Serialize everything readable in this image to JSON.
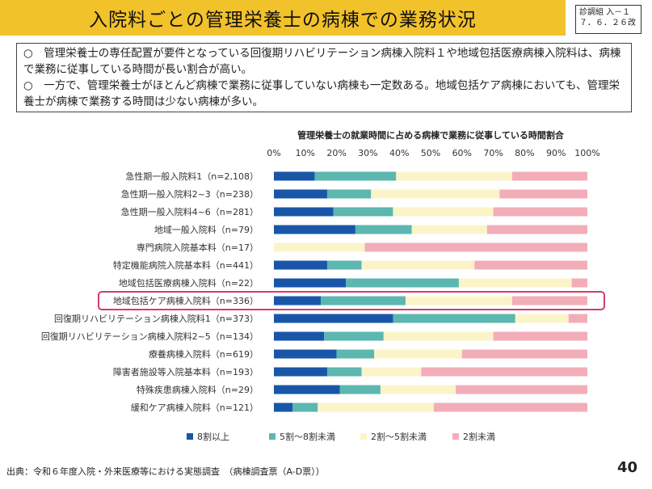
{
  "header": {
    "title": "入院料ごとの管理栄養士の病棟での業務状況",
    "ref_line1": "診調組 入－１",
    "ref_line2": "７．６．２６改"
  },
  "summary": {
    "point1": "○　管理栄養士の専任配置が要件となっている回復期リハビリテーション病棟入院料１や地域包括医療病棟入院料は、病棟で業務に従事している時間が長い割合が高い。",
    "point2": "○　一方で、管理栄養士がほとんど病棟で業務に従事していない病棟も一定数ある。地域包括ケア病棟においても、管理栄養士が病棟で業務する時間は少ない病棟が多い。"
  },
  "chart_data": {
    "type": "bar",
    "orientation": "horizontal-stacked-100",
    "title": "管理栄養士の就業時間に占める病棟で業務に従事している時間割合",
    "xticks": [
      "0%",
      "10%",
      "20%",
      "30%",
      "40%",
      "50%",
      "60%",
      "70%",
      "80%",
      "90%",
      "100%"
    ],
    "xlim": [
      0,
      100
    ],
    "categories": [
      "急性期一般入院料1（n=2,108）",
      "急性期一般入院料2~3（n=238）",
      "急性期一般入院料4~6（n=281）",
      "地域一般入院料（n=79）",
      "専門病院入院基本料（n=17）",
      "特定機能病院入院基本料（n=441）",
      "地域包括医療病棟入院料（n=22）",
      "地域包括ケア病棟入院料（n=336）",
      "回復期リハビリテーション病棟入院料1（n=373）",
      "回復期リハビリテーション病棟入院料2~5（n=134）",
      "療養病棟入院料（n=619）",
      "障害者施設等入院基本料（n=193）",
      "特殊疾患病棟入院料（n=29）",
      "緩和ケア病棟入院料（n=121）"
    ],
    "highlighted_category": "地域包括ケア病棟入院料（n=336）",
    "series": [
      {
        "name": "8割以上",
        "color": "#1a56a8",
        "values": [
          13,
          17,
          19,
          26,
          0,
          17,
          23,
          15,
          38,
          16,
          20,
          17,
          21,
          6
        ]
      },
      {
        "name": "5割～8割未満",
        "color": "#5bb7b0",
        "values": [
          26,
          14,
          19,
          18,
          0,
          11,
          36,
          27,
          39,
          19,
          12,
          11,
          13,
          8
        ]
      },
      {
        "name": "2割～5割未満",
        "color": "#fbf4c8",
        "values": [
          37,
          41,
          32,
          24,
          29,
          36,
          36,
          34,
          17,
          35,
          28,
          19,
          24,
          37
        ]
      },
      {
        "name": "2割未満",
        "color": "#f3adb9",
        "values": [
          24,
          28,
          30,
          32,
          71,
          36,
          5,
          24,
          6,
          30,
          40,
          53,
          42,
          49
        ]
      }
    ]
  },
  "footer": {
    "source": "出典：令和６年度入院・外来医療等における実態調査　（病棟調査票（A-D票））",
    "page_number": "40"
  },
  "colors": {
    "title_bar": "#f2c22a",
    "highlight_border": "#d43d6b"
  }
}
